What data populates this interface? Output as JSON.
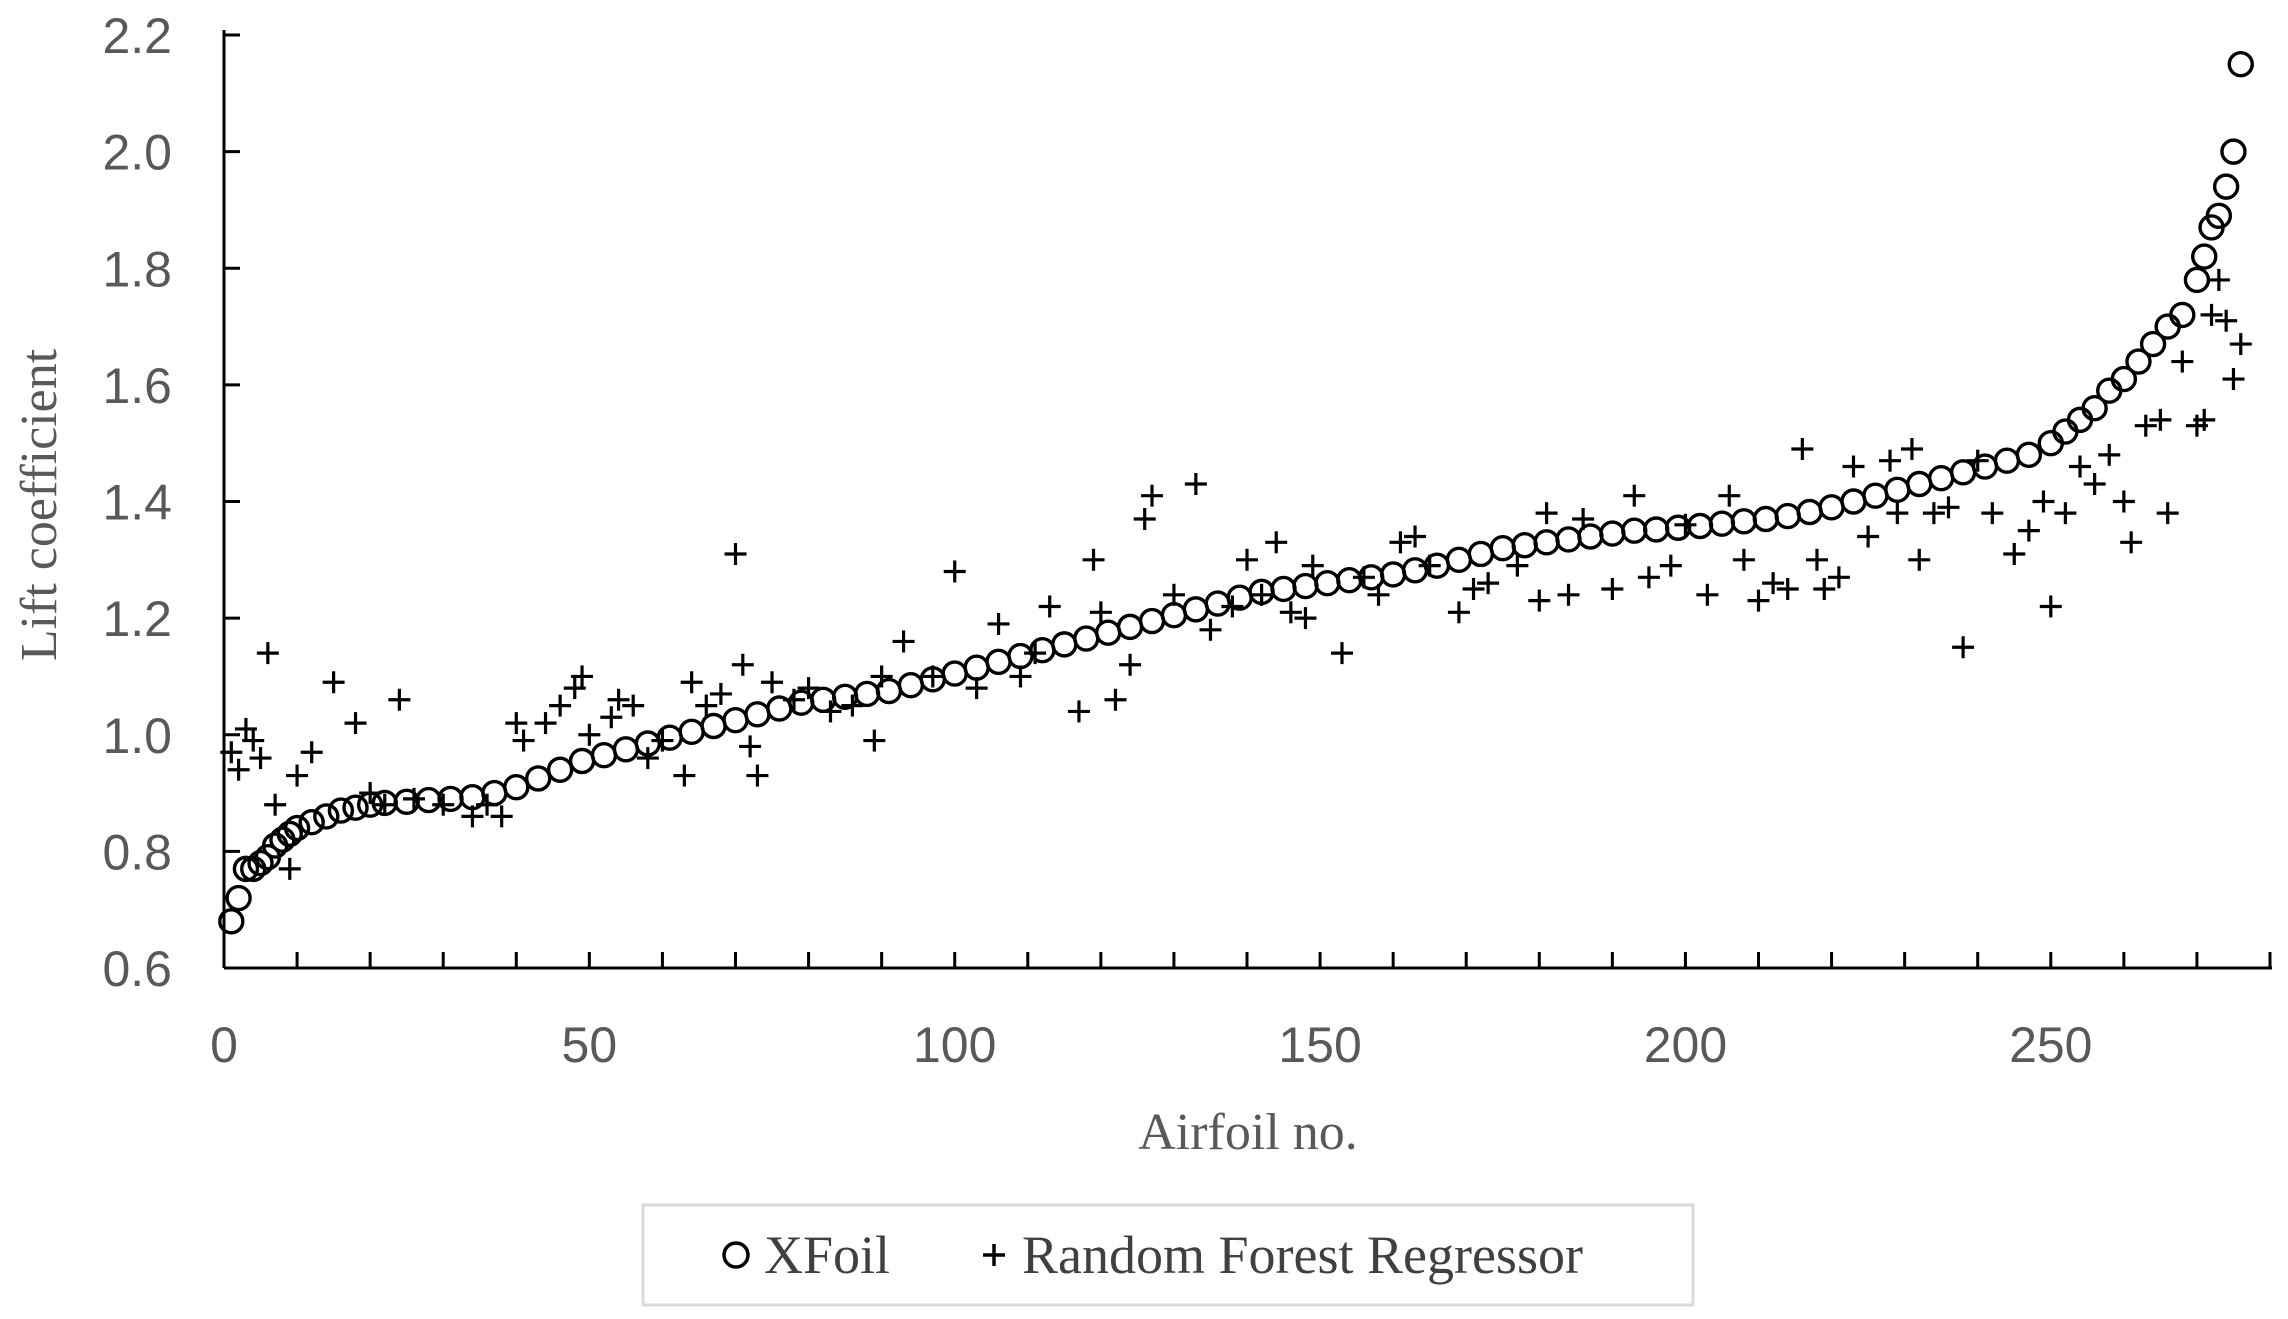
{
  "chart_data": {
    "type": "scatter",
    "title": "",
    "xlabel": "Airfoil no.",
    "ylabel": "Lift coefficient",
    "xlim": [
      0,
      280
    ],
    "ylim": [
      0.6,
      2.2
    ],
    "x_ticks": [
      "0",
      "50",
      "100",
      "150",
      "200",
      "250"
    ],
    "y_ticks": [
      "0.6",
      "0.8",
      "1.0",
      "1.2",
      "1.4",
      "1.6",
      "1.8",
      "2.0",
      "2.2"
    ],
    "grid": false,
    "legend_position": "bottom",
    "series": [
      {
        "name": "XFoil",
        "marker": "circle",
        "color": "#000000",
        "points": [
          [
            1,
            0.68
          ],
          [
            2,
            0.72
          ],
          [
            3,
            0.77
          ],
          [
            4,
            0.77
          ],
          [
            5,
            0.78
          ],
          [
            6,
            0.79
          ],
          [
            7,
            0.81
          ],
          [
            8,
            0.82
          ],
          [
            9,
            0.83
          ],
          [
            10,
            0.84
          ],
          [
            12,
            0.85
          ],
          [
            14,
            0.86
          ],
          [
            16,
            0.87
          ],
          [
            18,
            0.875
          ],
          [
            20,
            0.88
          ],
          [
            22,
            0.883
          ],
          [
            25,
            0.885
          ],
          [
            28,
            0.888
          ],
          [
            31,
            0.89
          ],
          [
            34,
            0.893
          ],
          [
            37,
            0.9
          ],
          [
            40,
            0.91
          ],
          [
            43,
            0.925
          ],
          [
            46,
            0.94
          ],
          [
            49,
            0.955
          ],
          [
            52,
            0.965
          ],
          [
            55,
            0.975
          ],
          [
            58,
            0.985
          ],
          [
            61,
            0.995
          ],
          [
            64,
            1.005
          ],
          [
            67,
            1.015
          ],
          [
            70,
            1.025
          ],
          [
            73,
            1.035
          ],
          [
            76,
            1.045
          ],
          [
            79,
            1.055
          ],
          [
            82,
            1.06
          ],
          [
            85,
            1.065
          ],
          [
            88,
            1.07
          ],
          [
            91,
            1.075
          ],
          [
            94,
            1.085
          ],
          [
            97,
            1.095
          ],
          [
            100,
            1.105
          ],
          [
            103,
            1.115
          ],
          [
            106,
            1.125
          ],
          [
            109,
            1.135
          ],
          [
            112,
            1.145
          ],
          [
            115,
            1.155
          ],
          [
            118,
            1.165
          ],
          [
            121,
            1.175
          ],
          [
            124,
            1.185
          ],
          [
            127,
            1.195
          ],
          [
            130,
            1.205
          ],
          [
            133,
            1.215
          ],
          [
            136,
            1.225
          ],
          [
            139,
            1.235
          ],
          [
            142,
            1.245
          ],
          [
            145,
            1.25
          ],
          [
            148,
            1.255
          ],
          [
            151,
            1.26
          ],
          [
            154,
            1.265
          ],
          [
            157,
            1.27
          ],
          [
            160,
            1.275
          ],
          [
            163,
            1.282
          ],
          [
            166,
            1.29
          ],
          [
            169,
            1.3
          ],
          [
            172,
            1.31
          ],
          [
            175,
            1.32
          ],
          [
            178,
            1.325
          ],
          [
            181,
            1.33
          ],
          [
            184,
            1.335
          ],
          [
            187,
            1.34
          ],
          [
            190,
            1.345
          ],
          [
            193,
            1.35
          ],
          [
            196,
            1.352
          ],
          [
            199,
            1.355
          ],
          [
            202,
            1.358
          ],
          [
            205,
            1.362
          ],
          [
            208,
            1.366
          ],
          [
            211,
            1.37
          ],
          [
            214,
            1.375
          ],
          [
            217,
            1.382
          ],
          [
            220,
            1.39
          ],
          [
            223,
            1.4
          ],
          [
            226,
            1.41
          ],
          [
            229,
            1.42
          ],
          [
            232,
            1.43
          ],
          [
            235,
            1.44
          ],
          [
            238,
            1.45
          ],
          [
            241,
            1.46
          ],
          [
            244,
            1.47
          ],
          [
            247,
            1.48
          ],
          [
            250,
            1.5
          ],
          [
            252,
            1.52
          ],
          [
            254,
            1.54
          ],
          [
            256,
            1.56
          ],
          [
            258,
            1.59
          ],
          [
            260,
            1.61
          ],
          [
            262,
            1.64
          ],
          [
            264,
            1.67
          ],
          [
            266,
            1.7
          ],
          [
            268,
            1.72
          ],
          [
            270,
            1.78
          ],
          [
            271,
            1.82
          ],
          [
            272,
            1.87
          ],
          [
            273,
            1.89
          ],
          [
            274,
            1.94
          ],
          [
            275,
            2.0
          ],
          [
            276,
            2.15
          ]
        ]
      },
      {
        "name": "Random Forest Regressor",
        "marker": "plus",
        "color": "#000000",
        "points": [
          [
            1,
            0.97
          ],
          [
            2,
            0.94
          ],
          [
            3,
            1.01
          ],
          [
            4,
            0.99
          ],
          [
            5,
            0.96
          ],
          [
            6,
            1.14
          ],
          [
            7,
            0.88
          ],
          [
            9,
            0.77
          ],
          [
            10,
            0.93
          ],
          [
            12,
            0.97
          ],
          [
            15,
            1.09
          ],
          [
            18,
            1.02
          ],
          [
            20,
            0.9
          ],
          [
            22,
            0.88
          ],
          [
            24,
            1.06
          ],
          [
            26,
            0.89
          ],
          [
            30,
            0.88
          ],
          [
            34,
            0.86
          ],
          [
            36,
            0.88
          ],
          [
            38,
            0.86
          ],
          [
            40,
            1.02
          ],
          [
            41,
            0.99
          ],
          [
            44,
            1.02
          ],
          [
            46,
            1.05
          ],
          [
            48,
            1.08
          ],
          [
            49,
            1.1
          ],
          [
            50,
            1.0
          ],
          [
            53,
            1.03
          ],
          [
            54,
            1.06
          ],
          [
            56,
            1.05
          ],
          [
            58,
            0.96
          ],
          [
            60,
            0.99
          ],
          [
            63,
            0.93
          ],
          [
            64,
            1.09
          ],
          [
            66,
            1.05
          ],
          [
            68,
            1.07
          ],
          [
            70,
            1.31
          ],
          [
            71,
            1.12
          ],
          [
            72,
            0.98
          ],
          [
            73,
            0.93
          ],
          [
            75,
            1.09
          ],
          [
            78,
            1.06
          ],
          [
            80,
            1.08
          ],
          [
            83,
            1.04
          ],
          [
            86,
            1.05
          ],
          [
            89,
            0.99
          ],
          [
            90,
            1.1
          ],
          [
            93,
            1.16
          ],
          [
            97,
            1.1
          ],
          [
            100,
            1.28
          ],
          [
            103,
            1.08
          ],
          [
            106,
            1.19
          ],
          [
            109,
            1.1
          ],
          [
            111,
            1.14
          ],
          [
            113,
            1.22
          ],
          [
            117,
            1.04
          ],
          [
            119,
            1.3
          ],
          [
            120,
            1.21
          ],
          [
            122,
            1.06
          ],
          [
            124,
            1.12
          ],
          [
            126,
            1.37
          ],
          [
            127,
            1.41
          ],
          [
            130,
            1.24
          ],
          [
            133,
            1.43
          ],
          [
            135,
            1.18
          ],
          [
            138,
            1.22
          ],
          [
            140,
            1.3
          ],
          [
            142,
            1.24
          ],
          [
            144,
            1.33
          ],
          [
            146,
            1.21
          ],
          [
            148,
            1.2
          ],
          [
            149,
            1.29
          ],
          [
            153,
            1.14
          ],
          [
            156,
            1.27
          ],
          [
            158,
            1.24
          ],
          [
            161,
            1.33
          ],
          [
            163,
            1.34
          ],
          [
            165,
            1.29
          ],
          [
            169,
            1.21
          ],
          [
            171,
            1.25
          ],
          [
            173,
            1.26
          ],
          [
            177,
            1.29
          ],
          [
            180,
            1.23
          ],
          [
            181,
            1.38
          ],
          [
            184,
            1.24
          ],
          [
            186,
            1.37
          ],
          [
            190,
            1.25
          ],
          [
            193,
            1.41
          ],
          [
            195,
            1.27
          ],
          [
            198,
            1.29
          ],
          [
            200,
            1.36
          ],
          [
            203,
            1.24
          ],
          [
            206,
            1.41
          ],
          [
            208,
            1.3
          ],
          [
            210,
            1.23
          ],
          [
            212,
            1.26
          ],
          [
            214,
            1.25
          ],
          [
            216,
            1.49
          ],
          [
            218,
            1.3
          ],
          [
            219,
            1.25
          ],
          [
            221,
            1.27
          ],
          [
            223,
            1.46
          ],
          [
            225,
            1.34
          ],
          [
            228,
            1.47
          ],
          [
            229,
            1.38
          ],
          [
            231,
            1.49
          ],
          [
            232,
            1.3
          ],
          [
            234,
            1.38
          ],
          [
            236,
            1.39
          ],
          [
            238,
            1.15
          ],
          [
            240,
            1.47
          ],
          [
            242,
            1.38
          ],
          [
            245,
            1.31
          ],
          [
            247,
            1.35
          ],
          [
            249,
            1.4
          ],
          [
            250,
            1.22
          ],
          [
            252,
            1.38
          ],
          [
            254,
            1.46
          ],
          [
            256,
            1.43
          ],
          [
            258,
            1.48
          ],
          [
            260,
            1.4
          ],
          [
            261,
            1.33
          ],
          [
            263,
            1.53
          ],
          [
            265,
            1.54
          ],
          [
            266,
            1.38
          ],
          [
            268,
            1.64
          ],
          [
            270,
            1.53
          ],
          [
            271,
            1.54
          ],
          [
            272,
            1.72
          ],
          [
            273,
            1.78
          ],
          [
            274,
            1.71
          ],
          [
            275,
            1.61
          ],
          [
            276,
            1.67
          ]
        ]
      }
    ]
  }
}
